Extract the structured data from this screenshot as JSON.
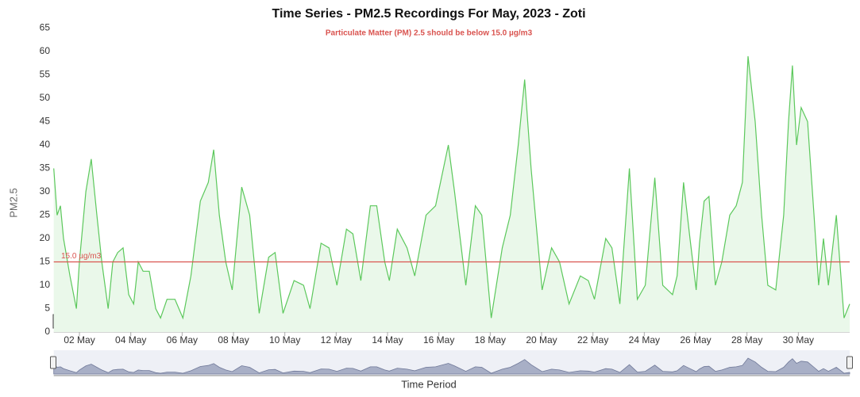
{
  "chart_data": {
    "type": "area",
    "title": "Time Series - PM2.5 Recordings For May, 2023 - Zoti",
    "subtitle": "Particulate Matter (PM) 2.5 should be below 15.0 µg/m3",
    "y_label": "PM2.5",
    "x_label": "Time Period",
    "range_box": "30",
    "color": "#5cc85c",
    "fill": "#eaf8ea",
    "threshold": {
      "value": 15,
      "label": "15.0 µg/m3",
      "color": "#d9534f"
    },
    "xlim": [
      1,
      32
    ],
    "xticks": [
      {
        "value": 2,
        "label": "02 May"
      },
      {
        "value": 4,
        "label": "04 May"
      },
      {
        "value": 6,
        "label": "06 May"
      },
      {
        "value": 8,
        "label": "08 May"
      },
      {
        "value": 10,
        "label": "10 May"
      },
      {
        "value": 12,
        "label": "12 May"
      },
      {
        "value": 14,
        "label": "14 May"
      },
      {
        "value": 16,
        "label": "16 May"
      },
      {
        "value": 18,
        "label": "18 May"
      },
      {
        "value": 20,
        "label": "20 May"
      },
      {
        "value": 22,
        "label": "22 May"
      },
      {
        "value": 24,
        "label": "24 May"
      },
      {
        "value": 26,
        "label": "26 May"
      },
      {
        "value": 28,
        "label": "28 May"
      },
      {
        "value": 30,
        "label": "30 May"
      }
    ],
    "ylim": [
      0,
      65
    ],
    "yticks": [
      0,
      5,
      10,
      15,
      20,
      25,
      30,
      35,
      40,
      45,
      50,
      55,
      60,
      65
    ],
    "x": [
      1.0,
      1.13,
      1.26,
      1.38,
      1.63,
      1.88,
      2.0,
      2.25,
      2.46,
      2.68,
      2.87,
      3.12,
      3.3,
      3.49,
      3.7,
      3.92,
      4.11,
      4.29,
      4.48,
      4.72,
      4.97,
      5.16,
      5.41,
      5.72,
      6.03,
      6.34,
      6.71,
      7.02,
      7.23,
      7.45,
      7.7,
      7.95,
      8.32,
      8.63,
      9.0,
      9.37,
      9.62,
      9.93,
      10.36,
      10.73,
      10.98,
      11.41,
      11.72,
      12.03,
      12.4,
      12.65,
      12.96,
      13.33,
      13.58,
      13.89,
      14.07,
      14.38,
      14.76,
      15.06,
      15.5,
      15.87,
      16.37,
      16.61,
      17.05,
      17.42,
      17.67,
      18.04,
      18.47,
      18.78,
      19.09,
      19.34,
      19.59,
      20.02,
      20.39,
      20.7,
      21.07,
      21.51,
      21.82,
      22.06,
      22.5,
      22.74,
      23.05,
      23.42,
      23.73,
      24.04,
      24.41,
      24.72,
      25.1,
      25.28,
      25.53,
      25.78,
      26.02,
      26.15,
      26.33,
      26.52,
      26.77,
      27.02,
      27.33,
      27.58,
      27.82,
      28.04,
      28.32,
      28.57,
      28.81,
      29.12,
      29.43,
      29.62,
      29.77,
      29.93,
      30.11,
      30.36,
      30.61,
      30.79,
      30.98,
      31.17,
      31.48,
      31.78,
      32.0
    ],
    "values": [
      35,
      25,
      27,
      20,
      12,
      5,
      15,
      30,
      37,
      25,
      15,
      5,
      15,
      17,
      18,
      8,
      6,
      15,
      13,
      13,
      5,
      3,
      7,
      7,
      3,
      12,
      28,
      32,
      39,
      25,
      15,
      9,
      31,
      25,
      4,
      16,
      17,
      4,
      11,
      10,
      5,
      19,
      18,
      10,
      22,
      21,
      11,
      27,
      27,
      15,
      11,
      22,
      18,
      12,
      25,
      27,
      40,
      30,
      10,
      27,
      25,
      3,
      18,
      25,
      40,
      54,
      35,
      9,
      18,
      15,
      6,
      12,
      11,
      7,
      20,
      18,
      6,
      35,
      7,
      10,
      33,
      10,
      8,
      12,
      32,
      20,
      9,
      19,
      28,
      29,
      10,
      15,
      25,
      27,
      32,
      59,
      45,
      25,
      10,
      9,
      25,
      45,
      57,
      40,
      48,
      45,
      25,
      10,
      20,
      10,
      25,
      3,
      6
    ]
  }
}
